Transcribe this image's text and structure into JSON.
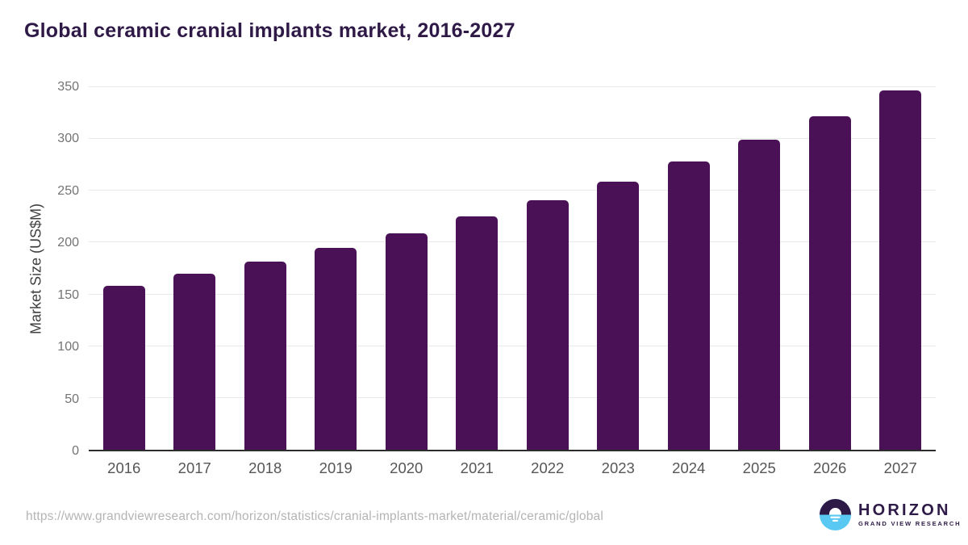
{
  "page": {
    "title": "Global ceramic cranial implants market, 2016-2027",
    "source_url": "https://www.grandviewresearch.com/horizon/statistics/cranial-implants-market/material/ceramic/global"
  },
  "chart_data": {
    "type": "bar",
    "title": "Global ceramic cranial implants market, 2016-2027",
    "categories": [
      "2016",
      "2017",
      "2018",
      "2019",
      "2020",
      "2021",
      "2022",
      "2023",
      "2024",
      "2025",
      "2026",
      "2027"
    ],
    "values": [
      158,
      170,
      182,
      195,
      209,
      225,
      241,
      259,
      278,
      299,
      322,
      347
    ],
    "xlabel": "",
    "ylabel": "Market Size (US$M)",
    "ylim": [
      0,
      350
    ],
    "yticks": [
      0,
      50,
      100,
      150,
      200,
      250,
      300,
      350
    ],
    "grid": true,
    "legend": "none",
    "bar_color": "#4a1157"
  },
  "logo": {
    "name": "HORIZON",
    "subtitle": "GRAND VIEW RESEARCH",
    "circle_top_color": "#2e1a47",
    "circle_bottom_color": "#59c8f2"
  },
  "colors": {
    "title_text": "#2f1a47",
    "axis_line": "#2d2d2d",
    "gridline": "#e9e9e9",
    "tick_text": "#737373",
    "xlabel_text": "#565656",
    "source_text": "#b4b4b4",
    "background": "#ffffff"
  }
}
